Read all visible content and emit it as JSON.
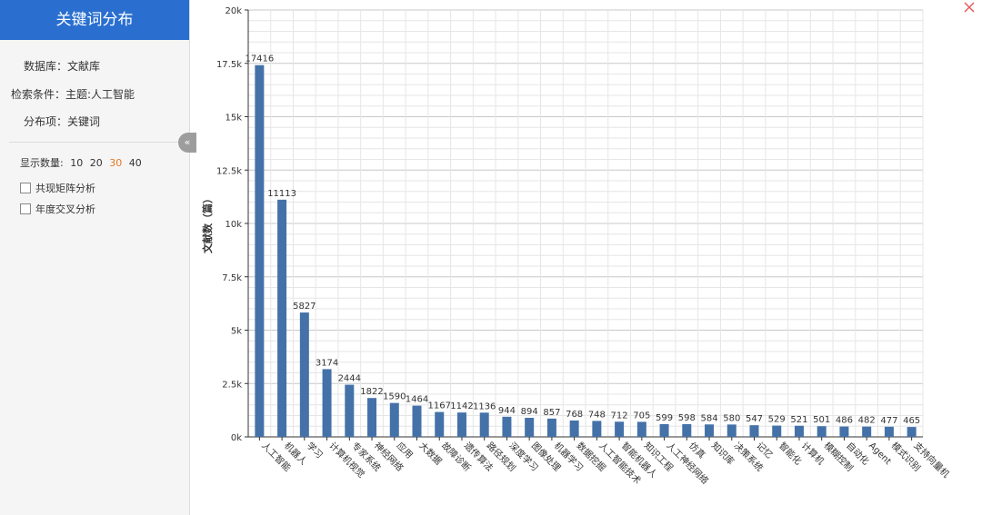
{
  "sidebar": {
    "title": "关键词分布",
    "database_label": "数据库：",
    "database_value": "文献库",
    "condition_label": "检索条件：",
    "condition_value": "主题:人工智能",
    "distribution_label": "分布项：",
    "distribution_value": "关键词",
    "collapse_icon": "«",
    "display_count_label": "显示数量:",
    "display_count_options": [
      "10",
      "20",
      "30",
      "40"
    ],
    "display_count_selected": "30",
    "co_occurrence_label": "共现矩阵分析",
    "annual_cross_label": "年度交叉分析"
  },
  "colors": {
    "bar": "#4472a8",
    "header": "#2a6fd0",
    "active_option": "#e87722",
    "close": "#e25c5c"
  },
  "icons": {
    "close": "close-icon",
    "collapse": "double-chevron-left-icon"
  },
  "chart_data": {
    "type": "bar",
    "ylabel": "文献数（篇）",
    "ylim": [
      0,
      20000
    ],
    "yticks": [
      "0k",
      "2.5k",
      "5k",
      "7.5k",
      "10k",
      "12.5k",
      "15k",
      "17.5k",
      "20k"
    ],
    "grid": true,
    "categories": [
      "人工智能",
      "机器人",
      "学习",
      "计算机视觉",
      "专家系统",
      "神经网络",
      "应用",
      "大数据",
      "故障诊断",
      "遗传算法",
      "路径规划",
      "深度学习",
      "图像处理",
      "机器学习",
      "数据挖掘",
      "人工智能技术",
      "智能机器人",
      "知识工程",
      "人工神经网络",
      "仿真",
      "知识库",
      "决策系统",
      "记忆",
      "智能化",
      "计算机",
      "模糊控制",
      "自动化",
      "Agent",
      "模式识别",
      "支持向量机"
    ],
    "values": [
      17416,
      11113,
      5827,
      3174,
      2444,
      1822,
      1590,
      1464,
      1167,
      1142,
      1136,
      944,
      894,
      857,
      768,
      748,
      712,
      705,
      599,
      598,
      584,
      580,
      547,
      529,
      521,
      501,
      486,
      482,
      477,
      465
    ]
  }
}
